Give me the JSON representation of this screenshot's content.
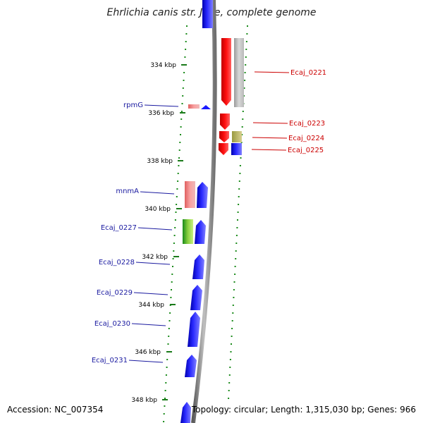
{
  "title": "Ehrlichia canis str. Jake, complete genome",
  "footer": {
    "accession": "Accession: NC_007354",
    "summary": "Topology: circular; Length: 1,315,030 bp; Genes: 966"
  },
  "colors": {
    "forward": "#1a1aff",
    "reverse": "#e60000",
    "backbone": "#888888",
    "ticks": "#1a7a1a",
    "label_forward": "#1a1aa0",
    "label_reverse": "#cc0000"
  },
  "scale": {
    "ticks": [
      {
        "label": "334 kbp"
      },
      {
        "label": "336 kbp"
      },
      {
        "label": "338 kbp"
      },
      {
        "label": "340 kbp"
      },
      {
        "label": "342 kbp"
      },
      {
        "label": "344 kbp"
      },
      {
        "label": "346 kbp"
      },
      {
        "label": "348 kbp"
      }
    ]
  },
  "genes": {
    "left": [
      {
        "name": "rpmG"
      },
      {
        "name": "mnmA"
      },
      {
        "name": "Ecaj_0227"
      },
      {
        "name": "Ecaj_0228"
      },
      {
        "name": "Ecaj_0229"
      },
      {
        "name": "Ecaj_0230"
      },
      {
        "name": "Ecaj_0231"
      }
    ],
    "right": [
      {
        "name": "Ecaj_0221"
      },
      {
        "name": "Ecaj_0223"
      },
      {
        "name": "Ecaj_0224"
      },
      {
        "name": "Ecaj_0225"
      }
    ]
  }
}
